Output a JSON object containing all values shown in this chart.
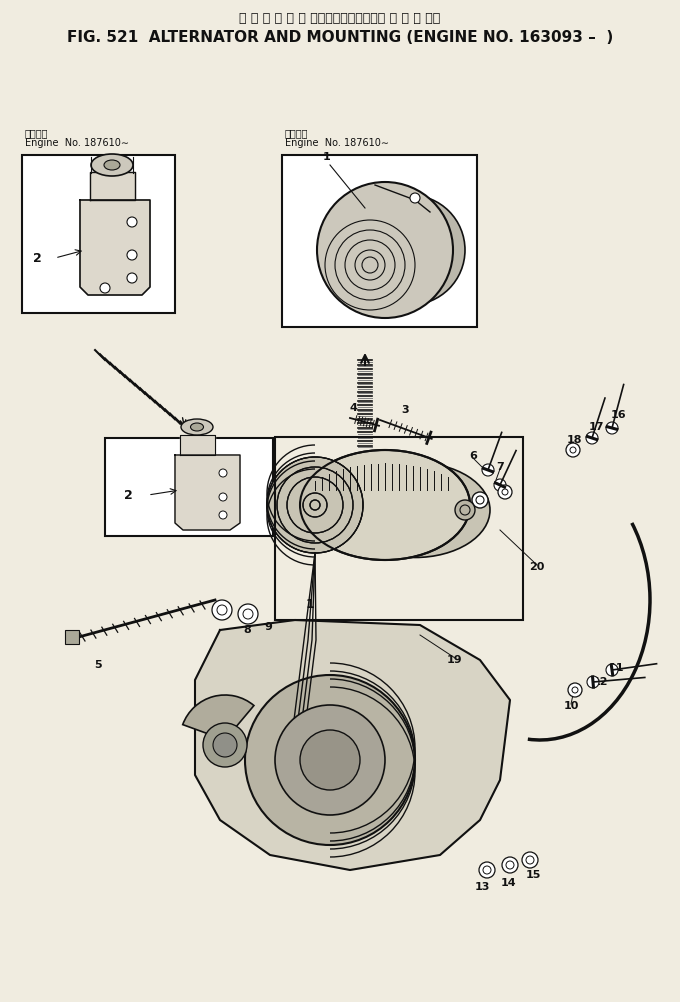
{
  "title_jp": "オ ル タ ネ ー タ およびマウンティング 適 用 号 機・",
  "title_en": "FIG. 521  ALTERNATOR AND MOUNTING (ENGINE NO. 163093 –  )",
  "bg_color": "#f0ece0",
  "line_color": "#111111",
  "inset1_label_jp": "適用号機",
  "inset1_label_en": "Engine  No. 187610∼",
  "inset2_label_jp": "適用号機",
  "inset2_label_en": "Engine  No. 187610∼"
}
